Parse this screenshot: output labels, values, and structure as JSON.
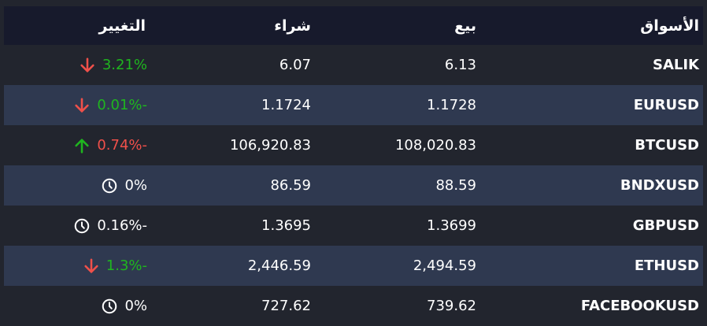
{
  "headers": {
    "markets": "الأسواق",
    "sell": "بيع",
    "buy": "شراء",
    "change": "التغيير"
  },
  "colors": {
    "up_green": "#1fb51f",
    "down_red": "#f0504a",
    "neutral": "#ffffff"
  },
  "rows": [
    {
      "market": "SALIK",
      "sell": "6.13",
      "buy": "6.07",
      "change": "3.21%",
      "change_color": "#1fb51f",
      "icon": "arrow-down-icon",
      "icon_color": "#f0504a"
    },
    {
      "market": "EURUSD",
      "sell": "1.1728",
      "buy": "1.1724",
      "change": "0.01%-",
      "change_color": "#1fb51f",
      "icon": "arrow-down-icon",
      "icon_color": "#f0504a"
    },
    {
      "market": "BTCUSD",
      "sell": "108,020.83",
      "buy": "106,920.83",
      "change": "0.74%-",
      "change_color": "#f0504a",
      "icon": "arrow-up-icon",
      "icon_color": "#1fb51f"
    },
    {
      "market": "BNDXUSD",
      "sell": "88.59",
      "buy": "86.59",
      "change": "0%",
      "change_color": "#ffffff",
      "icon": "clock-icon",
      "icon_color": "#ffffff"
    },
    {
      "market": "GBPUSD",
      "sell": "1.3699",
      "buy": "1.3695",
      "change": "0.16%-",
      "change_color": "#ffffff",
      "icon": "clock-icon",
      "icon_color": "#ffffff"
    },
    {
      "market": "ETHUSD",
      "sell": "2,494.59",
      "buy": "2,446.59",
      "change": "1.3%-",
      "change_color": "#1fb51f",
      "icon": "arrow-down-icon",
      "icon_color": "#f0504a"
    },
    {
      "market": "FACEBOOKUSD",
      "sell": "739.62",
      "buy": "727.62",
      "change": "0%",
      "change_color": "#ffffff",
      "icon": "clock-icon",
      "icon_color": "#ffffff"
    }
  ]
}
